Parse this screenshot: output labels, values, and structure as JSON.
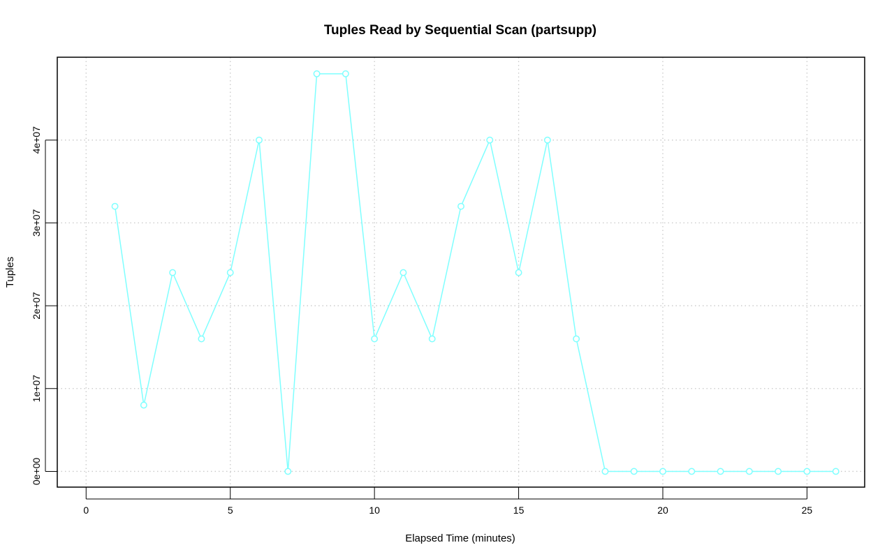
{
  "chart_data": {
    "type": "line",
    "title": "Tuples Read by Sequential Scan (partsupp)",
    "xlabel": "Elapsed Time (minutes)",
    "ylabel": "Tuples",
    "xlim": [
      -1,
      27
    ],
    "ylim": [
      -1900000,
      50000000
    ],
    "xticks": [
      0,
      5,
      10,
      15,
      20,
      25
    ],
    "xtick_labels": [
      "0",
      "5",
      "10",
      "15",
      "20",
      "25"
    ],
    "yticks": [
      0,
      10000000,
      20000000,
      30000000,
      40000000
    ],
    "ytick_labels": [
      "0e+00",
      "1e+07",
      "2e+07",
      "3e+07",
      "4e+07"
    ],
    "grid": true,
    "color": "#7fffff",
    "series": [
      {
        "x": [
          1,
          2,
          3,
          4,
          5,
          6,
          7,
          8,
          9,
          10,
          11,
          12,
          13,
          14,
          15,
          16,
          17,
          18,
          19,
          20,
          21,
          22,
          23,
          24,
          25,
          26
        ],
        "values": [
          32000000,
          8000000,
          24000000,
          16000000,
          24000000,
          40000000,
          0,
          48000000,
          48000000,
          16000000,
          24000000,
          16000000,
          32000000,
          40000000,
          24000000,
          40000000,
          16000000,
          0,
          0,
          0,
          0,
          0,
          0,
          0,
          0,
          0
        ]
      }
    ]
  }
}
